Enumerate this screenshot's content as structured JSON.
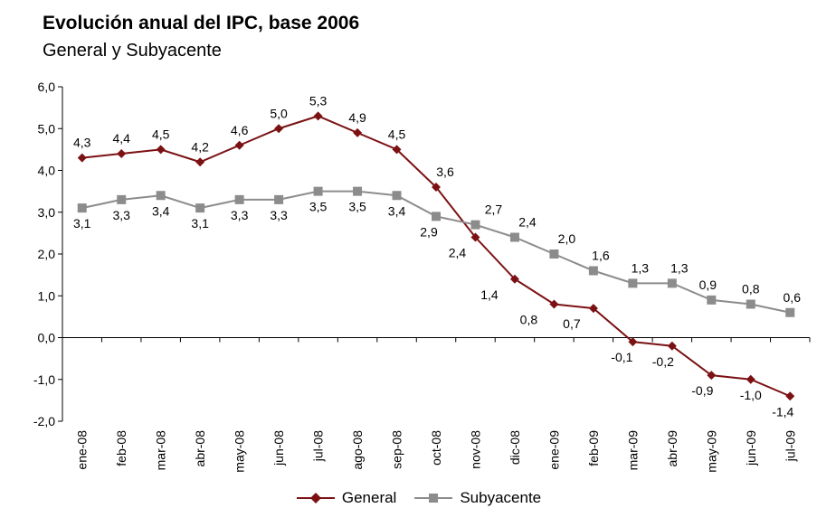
{
  "chart_data": {
    "type": "line",
    "title": "Evolución anual del IPC, base 2006",
    "subtitle": "General y Subyacente",
    "xlabel": "",
    "ylabel": "",
    "ylim": [
      -2.0,
      6.0
    ],
    "yticks": [
      "6,0",
      "5,0",
      "4,0",
      "3,0",
      "2,0",
      "1,0",
      "0,0",
      "-1,0",
      "-2,0"
    ],
    "categories": [
      "ene-08",
      "feb-08",
      "mar-08",
      "abr-08",
      "may-08",
      "jun-08",
      "jul-08",
      "ago-08",
      "sep-08",
      "oct-08",
      "nov-08",
      "dic-08",
      "ene-09",
      "feb-09",
      "mar-09",
      "abr-09",
      "may-09",
      "jun-09",
      "jul-09"
    ],
    "series": [
      {
        "name": "General",
        "color": "#7b1113",
        "marker": "diamond",
        "values": [
          4.3,
          4.4,
          4.5,
          4.2,
          4.6,
          5.0,
          5.3,
          4.9,
          4.5,
          3.6,
          2.4,
          1.4,
          0.8,
          0.7,
          -0.1,
          -0.2,
          -0.9,
          -1.0,
          -1.4
        ],
        "labels": [
          "4,3",
          "4,4",
          "4,5",
          "4,2",
          "4,6",
          "5,0",
          "5,3",
          "4,9",
          "4,5",
          "3,6",
          "2,4",
          "1,4",
          "0,8",
          "0,7",
          "-0,1",
          "-0,2",
          "-0,9",
          "-1,0",
          "-1,4"
        ]
      },
      {
        "name": "Subyacente",
        "color": "#8c8c8c",
        "marker": "square",
        "values": [
          3.1,
          3.3,
          3.4,
          3.1,
          3.3,
          3.3,
          3.5,
          3.5,
          3.4,
          2.9,
          2.7,
          2.4,
          2.0,
          1.6,
          1.3,
          1.3,
          0.9,
          0.8,
          0.6
        ],
        "labels": [
          "3,1",
          "3,3",
          "3,4",
          "3,1",
          "3,3",
          "3,3",
          "3,5",
          "3,5",
          "3,4",
          "2,9",
          "2,7",
          "2,4",
          "2,0",
          "1,6",
          "1,3",
          "1,3",
          "0,9",
          "0,8",
          "0,6"
        ]
      }
    ],
    "grid": false,
    "legend_position": "bottom"
  }
}
